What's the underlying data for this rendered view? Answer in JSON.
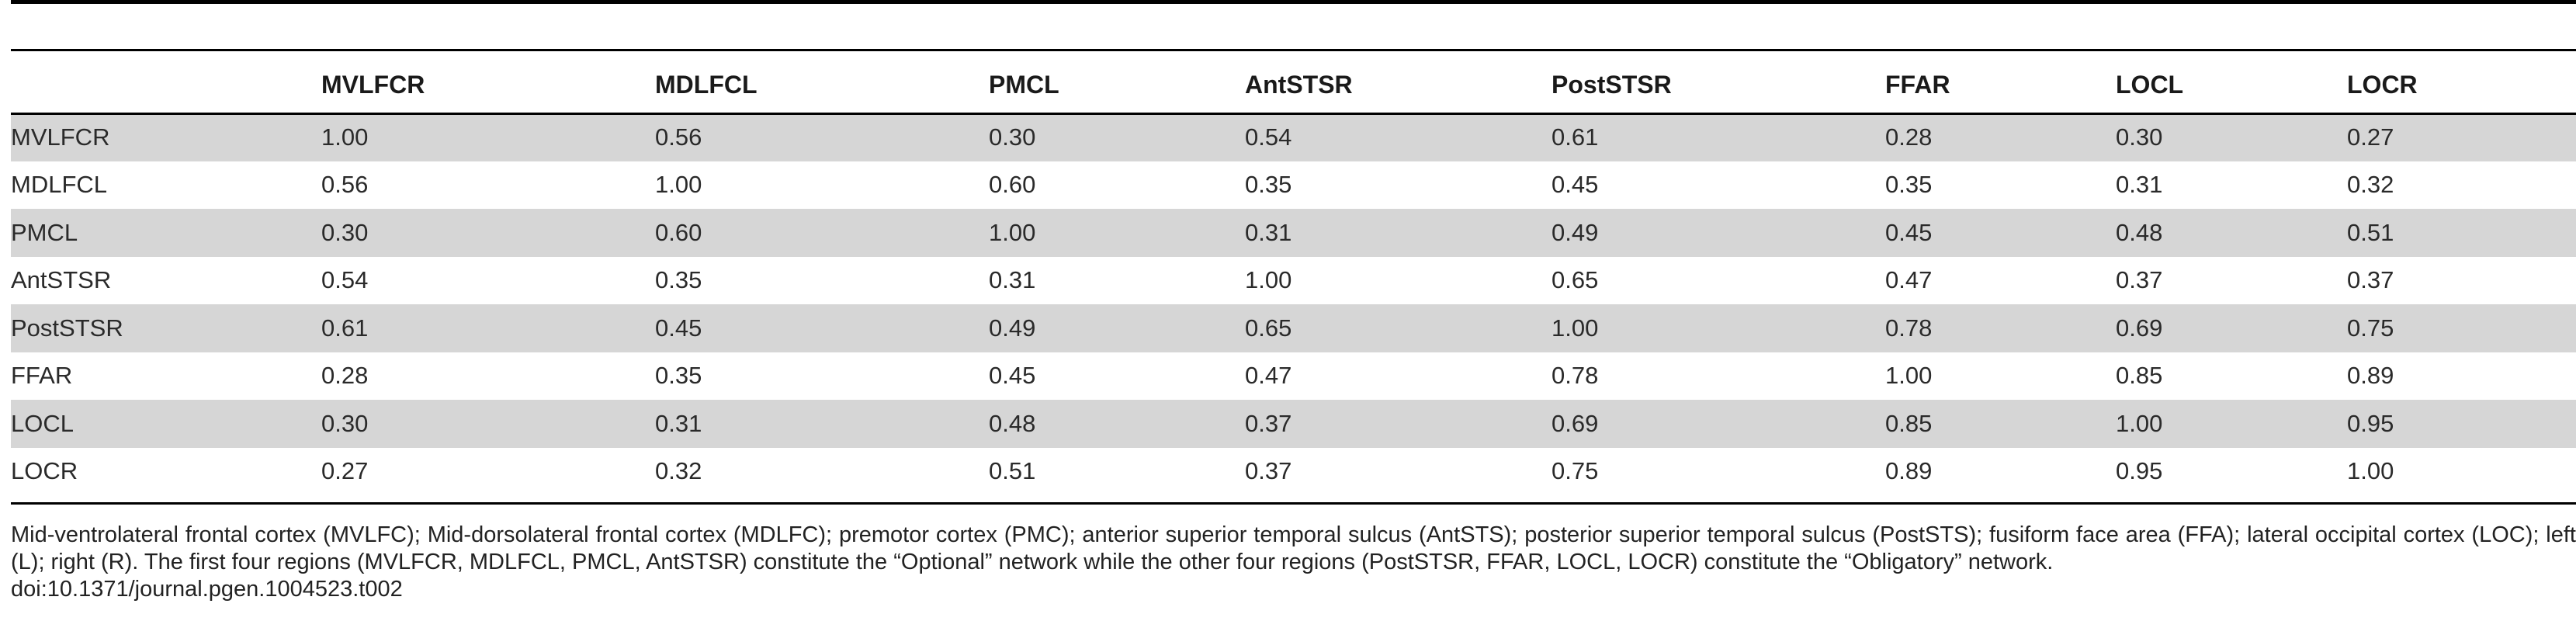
{
  "table": {
    "columns": [
      "",
      "MVLFCR",
      "MDLFCL",
      "PMCL",
      "AntSTSR",
      "PostSTSR",
      "FFAR",
      "LOCL",
      "LOCR"
    ],
    "rows": [
      {
        "label": "MVLFCR",
        "values": [
          "1.00",
          "0.56",
          "0.30",
          "0.54",
          "0.61",
          "0.28",
          "0.30",
          "0.27"
        ]
      },
      {
        "label": "MDLFCL",
        "values": [
          "0.56",
          "1.00",
          "0.60",
          "0.35",
          "0.45",
          "0.35",
          "0.31",
          "0.32"
        ]
      },
      {
        "label": "PMCL",
        "values": [
          "0.30",
          "0.60",
          "1.00",
          "0.31",
          "0.49",
          "0.45",
          "0.48",
          "0.51"
        ]
      },
      {
        "label": "AntSTSR",
        "values": [
          "0.54",
          "0.35",
          "0.31",
          "1.00",
          "0.65",
          "0.47",
          "0.37",
          "0.37"
        ]
      },
      {
        "label": "PostSTSR",
        "values": [
          "0.61",
          "0.45",
          "0.49",
          "0.65",
          "1.00",
          "0.78",
          "0.69",
          "0.75"
        ]
      },
      {
        "label": "FFAR",
        "values": [
          "0.28",
          "0.35",
          "0.45",
          "0.47",
          "0.78",
          "1.00",
          "0.85",
          "0.89"
        ]
      },
      {
        "label": "LOCL",
        "values": [
          "0.30",
          "0.31",
          "0.48",
          "0.37",
          "0.69",
          "0.85",
          "1.00",
          "0.95"
        ]
      },
      {
        "label": "LOCR",
        "values": [
          "0.27",
          "0.32",
          "0.51",
          "0.37",
          "0.75",
          "0.89",
          "0.95",
          "1.00"
        ]
      }
    ],
    "shade_color": "#d6d6d6"
  },
  "footnote": {
    "text": "Mid-ventrolateral frontal cortex (MVLFC); Mid-dorsolateral frontal cortex (MDLFC); premotor cortex (PMC); anterior superior temporal sulcus (AntSTS); posterior superior temporal sulcus (PostSTS); fusiform face area (FFA); lateral occipital cortex (LOC); left (L); right (R). The first four regions (MVLFCR, MDLFCL, PMCL, AntSTSR) constitute the “Optional” network while the other four regions (PostSTSR, FFAR, LOCL, LOCR) constitute the “Obligatory” network.",
    "doi": "doi:10.1371/journal.pgen.1004523.t002"
  }
}
